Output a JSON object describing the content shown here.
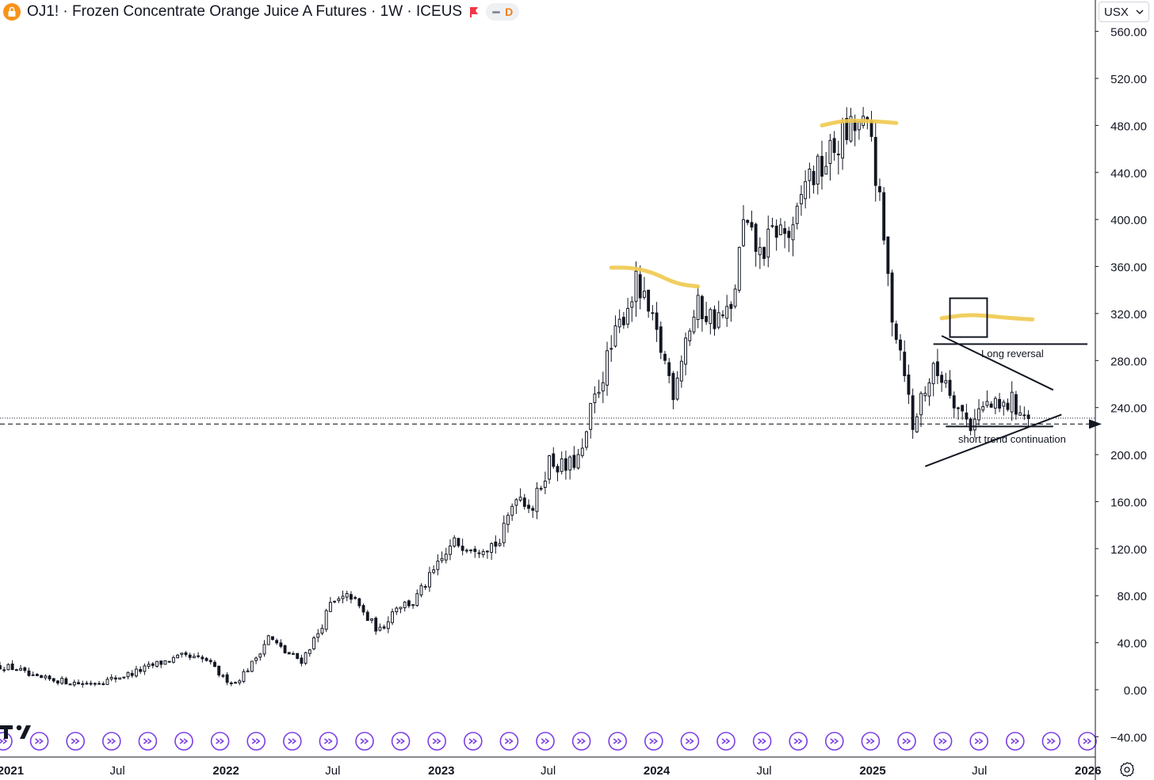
{
  "header": {
    "symbol_title": "OJ1! · Frozen Concentrate Orange Juice A Futures · 1W · ICEUS",
    "session_badge": "D"
  },
  "currency_selector": {
    "label": "USX"
  },
  "icons": [
    "lock-icon",
    "flag-icon",
    "chevron-down-icon",
    "gear-icon",
    "tradingview-logo-icon",
    "event-marker-icon"
  ],
  "colors": {
    "candle": "#131722",
    "highlight": "#f0c94e",
    "event_marker": "#7b3fe4",
    "axis_text": "#131722",
    "logo_badge": "#f7931a",
    "flag": "#f23645"
  },
  "chart_data": {
    "type": "candlestick",
    "timeframe": "1W",
    "ylim": [
      -50,
      565
    ],
    "y_ticks": [
      -40,
      0,
      40,
      80,
      120,
      160,
      200,
      240,
      280,
      320,
      360,
      400,
      440,
      480,
      520,
      560
    ],
    "y_tick_labels": [
      "−40.00",
      "0.00",
      "40.00",
      "80.00",
      "120.00",
      "160.00",
      "200.00",
      "240.00",
      "280.00",
      "320.00",
      "360.00",
      "400.00",
      "440.00",
      "480.00",
      "520.00",
      "560.00"
    ],
    "x_start": "2020-12-14",
    "x_end": "2025-12-31",
    "x_ticks": [
      {
        "date": "2021-01-01",
        "label": "2021",
        "bold": true
      },
      {
        "date": "2021-07-01",
        "label": "Jul",
        "bold": false
      },
      {
        "date": "2022-01-01",
        "label": "2022",
        "bold": true
      },
      {
        "date": "2022-07-01",
        "label": "Jul",
        "bold": false
      },
      {
        "date": "2023-01-01",
        "label": "2023",
        "bold": true
      },
      {
        "date": "2023-07-01",
        "label": "Jul",
        "bold": false
      },
      {
        "date": "2024-01-01",
        "label": "2024",
        "bold": true
      },
      {
        "date": "2024-07-01",
        "label": "Jul",
        "bold": false
      },
      {
        "date": "2025-01-01",
        "label": "2025",
        "bold": true
      },
      {
        "date": "2025-07-01",
        "label": "Jul",
        "bold": false
      },
      {
        "date": "2026-01-01",
        "label": "2026",
        "bold": true
      }
    ],
    "close_anchors": [
      [
        "2020-12-14",
        20
      ],
      [
        "2021-01-11",
        18
      ],
      [
        "2021-02-08",
        10
      ],
      [
        "2021-03-22",
        8
      ],
      [
        "2021-05-03",
        5
      ],
      [
        "2021-06-14",
        8
      ],
      [
        "2021-07-26",
        14
      ],
      [
        "2021-09-06",
        22
      ],
      [
        "2021-10-18",
        28
      ],
      [
        "2021-11-29",
        25
      ],
      [
        "2021-12-27",
        10
      ],
      [
        "2022-01-17",
        6
      ],
      [
        "2022-02-14",
        22
      ],
      [
        "2022-03-14",
        45
      ],
      [
        "2022-04-11",
        32
      ],
      [
        "2022-05-09",
        25
      ],
      [
        "2022-06-06",
        48
      ],
      [
        "2022-06-27",
        72
      ],
      [
        "2022-08-01",
        80
      ],
      [
        "2022-08-29",
        60
      ],
      [
        "2022-09-19",
        50
      ],
      [
        "2022-10-17",
        72
      ],
      [
        "2022-11-14",
        74
      ],
      [
        "2022-12-19",
        100
      ],
      [
        "2023-01-23",
        125
      ],
      [
        "2023-03-06",
        122
      ],
      [
        "2023-04-10",
        125
      ],
      [
        "2023-05-08",
        168
      ],
      [
        "2023-06-05",
        155
      ],
      [
        "2023-07-03",
        195
      ],
      [
        "2023-07-31",
        188
      ],
      [
        "2023-08-28",
        200
      ],
      [
        "2023-09-11",
        236
      ],
      [
        "2023-10-09",
        280
      ],
      [
        "2023-11-06",
        320
      ],
      [
        "2023-11-27",
        345
      ],
      [
        "2023-12-18",
        320
      ],
      [
        "2024-01-08",
        290
      ],
      [
        "2024-01-29",
        255
      ],
      [
        "2024-02-19",
        300
      ],
      [
        "2024-03-11",
        325
      ],
      [
        "2024-04-08",
        315
      ],
      [
        "2024-05-06",
        320
      ],
      [
        "2024-05-27",
        395
      ],
      [
        "2024-06-24",
        370
      ],
      [
        "2024-07-22",
        392
      ],
      [
        "2024-08-19",
        385
      ],
      [
        "2024-09-09",
        435
      ],
      [
        "2024-09-30",
        440
      ],
      [
        "2024-10-21",
        455
      ],
      [
        "2024-11-11",
        470
      ],
      [
        "2024-12-09",
        480
      ],
      [
        "2024-12-30",
        470
      ],
      [
        "2025-01-13",
        410
      ],
      [
        "2025-02-03",
        320
      ],
      [
        "2025-02-24",
        275
      ],
      [
        "2025-03-10",
        220
      ],
      [
        "2025-03-24",
        250
      ],
      [
        "2025-04-14",
        270
      ],
      [
        "2025-05-05",
        265
      ],
      [
        "2025-05-26",
        240
      ],
      [
        "2025-06-16",
        225
      ],
      [
        "2025-06-23",
        235
      ],
      [
        "2025-07-14",
        242
      ],
      [
        "2025-08-04",
        238
      ],
      [
        "2025-08-25",
        245
      ],
      [
        "2025-09-22",
        230
      ]
    ],
    "current_price": 226,
    "dotted_price_level": 231,
    "annotations": {
      "highlight_lines": [
        {
          "points": [
            [
              "2023-10-16",
              359
            ],
            [
              "2023-11-20",
              359
            ],
            [
              "2023-12-25",
              355
            ],
            [
              "2024-02-05",
              345
            ],
            [
              "2024-03-11",
              343
            ]
          ]
        },
        {
          "points": [
            [
              "2024-10-07",
              480
            ],
            [
              "2024-11-11",
              484
            ],
            [
              "2024-12-16",
              484
            ],
            [
              "2025-01-20",
              483
            ],
            [
              "2025-02-10",
              482
            ]
          ]
        },
        {
          "points": [
            [
              "2025-04-28",
              316
            ],
            [
              "2025-06-09",
              319
            ],
            [
              "2025-07-14",
              318
            ],
            [
              "2025-08-25",
              316
            ],
            [
              "2025-09-29",
              315
            ]
          ]
        }
      ],
      "trend_lines": [
        {
          "from": [
            "2025-04-28",
            301
          ],
          "to": [
            "2025-11-03",
            255
          ]
        },
        {
          "from": [
            "2025-03-31",
            190
          ],
          "to": [
            "2025-11-17",
            234
          ]
        },
        {
          "from": [
            "2025-04-14",
            294
          ],
          "to": [
            "2025-12-31",
            294
          ]
        },
        {
          "from": [
            "2025-05-05",
            224
          ],
          "to": [
            "2025-11-03",
            224
          ]
        }
      ],
      "box": {
        "from": [
          "2025-05-12",
          333
        ],
        "to": [
          "2025-07-14",
          300
        ]
      },
      "labels": [
        {
          "text": "Long reversal",
          "at": [
            "2025-07-04",
            283
          ]
        },
        {
          "text": "short trend continuation",
          "at": [
            "2025-05-26",
            210
          ]
        }
      ]
    }
  }
}
